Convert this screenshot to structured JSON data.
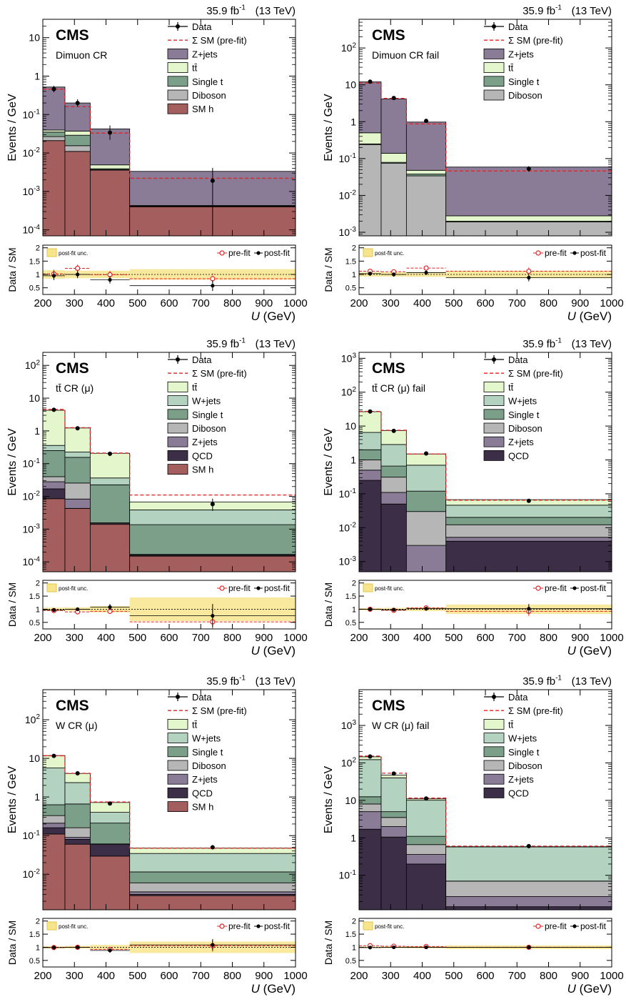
{
  "colors": {
    "zjets": "#8a7b96",
    "ttbar": "#e4f6cc",
    "singlet": "#7c9f89",
    "diboson": "#b6b6b6",
    "smh": "#a55e5e",
    "wjets": "#b3d3c0",
    "qcd": "#3d2e48",
    "data": "#000000",
    "prefit": "#e32121",
    "unc": "#f7e58e"
  },
  "chart_data": [
    {
      "type": "bar",
      "lumi": "35.9 fb",
      "lumi_sup": "-1",
      "energy": "(13 TeV)",
      "cms": "CMS",
      "region": "Dimuon CR",
      "ylabel": "Events / GeV",
      "xlabel": "U (GeV)",
      "ratio_ylabel": "Data / SM",
      "bin_edges": [
        200,
        270,
        350,
        475,
        1000
      ],
      "ylim": [
        7e-05,
        30
      ],
      "yticks": [
        {
          "v": 0.0001,
          "l": "10",
          "s": "-4"
        },
        {
          "v": 0.001,
          "l": "10",
          "s": "-3"
        },
        {
          "v": 0.01,
          "l": "10",
          "s": "-2"
        },
        {
          "v": 0.1,
          "l": "10",
          "s": "-1"
        },
        {
          "v": 1,
          "l": "1",
          "s": ""
        },
        {
          "v": 10,
          "l": "10",
          "s": ""
        }
      ],
      "xticks": [
        200,
        300,
        400,
        500,
        600,
        700,
        800,
        900,
        1000
      ],
      "stack": [
        {
          "name": "SM h",
          "color": "smh",
          "values": [
            0.021,
            0.011,
            0.0036,
            0.0004
          ]
        },
        {
          "name": "Diboson",
          "color": "diboson",
          "values": [
            0.0057,
            0.0045,
            0.0001,
            1e-05
          ]
        },
        {
          "name": "Single t",
          "color": "singlet",
          "values": [
            0.0083,
            0.0135,
            0.0002,
            1e-05
          ]
        },
        {
          "name": "tt̄",
          "color": "ttbar",
          "values": [
            0.0045,
            0.008,
            0.001,
            1e-05
          ]
        },
        {
          "name": "Z+jets",
          "color": "zjets",
          "values": [
            0.48,
            0.163,
            0.0375,
            0.0029
          ]
        }
      ],
      "legend": [
        "Data",
        "Σ SM (pre-fit)",
        "Z+jets",
        "tt̄",
        "Single t",
        "Diboson",
        "SM h"
      ],
      "prefit": [
        0.46,
        0.16,
        0.033,
        0.0022
      ],
      "data": [
        0.46,
        0.2,
        0.034,
        0.0019
      ],
      "data_err": [
        [
          0.38,
          0.56
        ],
        [
          0.16,
          0.25
        ],
        [
          0.022,
          0.052
        ],
        [
          3e-05,
          0.0041
        ]
      ],
      "ratio_ylim": [
        0.25,
        2.1
      ],
      "ratio_yticks": [
        "0.5",
        "1",
        "1.5",
        "2"
      ],
      "ratio_legend": [
        "post-fit unc.",
        "pre-fit",
        "post-fit"
      ],
      "ratio_unc": [
        0.16,
        0.14,
        0.14,
        0.2
      ],
      "ratio_prefit": [
        1.02,
        1.23,
        0.99,
        0.84
      ],
      "ratio_postfit": [
        0.95,
        1.0,
        0.8,
        0.58
      ]
    },
    {
      "type": "bar",
      "lumi": "35.9 fb",
      "lumi_sup": "-1",
      "energy": "(13 TeV)",
      "cms": "CMS",
      "region": "Dimuon CR fail",
      "ylabel": "Events / GeV",
      "xlabel": "U (GeV)",
      "ratio_ylabel": "Data / SM",
      "bin_edges": [
        200,
        270,
        350,
        475,
        1000
      ],
      "ylim": [
        0.0008,
        600
      ],
      "yticks": [
        {
          "v": 0.001,
          "l": "10",
          "s": "-3"
        },
        {
          "v": 0.01,
          "l": "10",
          "s": "-2"
        },
        {
          "v": 0.1,
          "l": "10",
          "s": "-1"
        },
        {
          "v": 1,
          "l": "1",
          "s": ""
        },
        {
          "v": 10,
          "l": "10",
          "s": ""
        },
        {
          "v": 100,
          "l": "10",
          "s": "2"
        }
      ],
      "xticks": [
        200,
        300,
        400,
        500,
        600,
        700,
        800,
        900,
        1000
      ],
      "stack": [
        {
          "name": "Diboson",
          "color": "diboson",
          "values": [
            0.24,
            0.075,
            0.034,
            0.0019
          ]
        },
        {
          "name": "Single t",
          "color": "singlet",
          "values": [
            0.01,
            0.004,
            0.004,
            0.0001
          ]
        },
        {
          "name": "tt̄",
          "color": "ttbar",
          "values": [
            0.25,
            0.06,
            0.01,
            0.0008
          ]
        },
        {
          "name": "Z+jets",
          "color": "zjets",
          "values": [
            11.5,
            4.0,
            0.93,
            0.056
          ]
        }
      ],
      "legend": [
        "Data",
        "Σ SM (pre-fit)",
        "Z+jets",
        "tt̄",
        "Single t",
        "Diboson"
      ],
      "prefit": [
        11.2,
        4.3,
        0.87,
        0.046
      ],
      "data": [
        12.2,
        4.4,
        1.05,
        0.053
      ],
      "data_err": [
        [
          11.3,
          13.1
        ],
        [
          4.0,
          4.8
        ],
        [
          0.93,
          1.18
        ],
        [
          0.044,
          0.062
        ]
      ],
      "ratio_ylim": [
        0.25,
        2.1
      ],
      "ratio_yticks": [
        "0.5",
        "1",
        "1.5",
        "2"
      ],
      "ratio_legend": [
        "post-fit unc.",
        "pre-fit",
        "post-fit"
      ],
      "ratio_unc": [
        0.08,
        0.08,
        0.09,
        0.14
      ],
      "ratio_prefit": [
        1.12,
        1.1,
        1.24,
        1.12
      ],
      "ratio_postfit": [
        1.03,
        1.0,
        1.07,
        0.88
      ]
    },
    {
      "type": "bar",
      "lumi": "35.9 fb",
      "lumi_sup": "-1",
      "energy": "(13 TeV)",
      "cms": "CMS",
      "region": "tt̄ CR (μ)",
      "ylabel": "Events / GeV",
      "xlabel": "U (GeV)",
      "ratio_ylabel": "Data / SM",
      "bin_edges": [
        200,
        270,
        350,
        475,
        1000
      ],
      "ylim": [
        5e-05,
        250
      ],
      "yticks": [
        {
          "v": 0.0001,
          "l": "10",
          "s": "-4"
        },
        {
          "v": 0.001,
          "l": "10",
          "s": "-3"
        },
        {
          "v": 0.01,
          "l": "10",
          "s": "-2"
        },
        {
          "v": 0.1,
          "l": "10",
          "s": "-1"
        },
        {
          "v": 1,
          "l": "1",
          "s": ""
        },
        {
          "v": 10,
          "l": "10",
          "s": ""
        },
        {
          "v": 100,
          "l": "10",
          "s": "2"
        }
      ],
      "xticks": [
        200,
        300,
        400,
        500,
        600,
        700,
        800,
        900,
        1000
      ],
      "stack": [
        {
          "name": "SM h",
          "color": "smh",
          "values": [
            0.0085,
            0.0043,
            0.0014,
            0.00015
          ]
        },
        {
          "name": "QCD",
          "color": "qcd",
          "values": [
            0.0085,
            1e-05,
            1e-05,
            5e-06
          ]
        },
        {
          "name": "Z+jets",
          "color": "zjets",
          "values": [
            0.011,
            0.004,
            0.0001,
            1e-05
          ]
        },
        {
          "name": "Diboson",
          "color": "diboson",
          "values": [
            0.012,
            0.0173,
            5e-05,
            5e-06
          ]
        },
        {
          "name": "Single t",
          "color": "singlet",
          "values": [
            0.21,
            0.13,
            0.021,
            0.0012
          ]
        },
        {
          "name": "W+jets",
          "color": "wjets",
          "values": [
            0.11,
            0.07,
            0.014,
            0.0025
          ]
        },
        {
          "name": "tt̄",
          "color": "ttbar",
          "values": [
            3.9,
            1.0,
            0.17,
            0.0029
          ]
        }
      ],
      "legend": [
        "Data",
        "Σ SM (pre-fit)",
        "tt̄",
        "W+jets",
        "Single t",
        "Diboson",
        "Z+jets",
        "QCD",
        "SM h"
      ],
      "prefit": [
        4.5,
        1.25,
        0.21,
        0.011
      ],
      "data": [
        4.4,
        1.2,
        0.2,
        0.0058
      ],
      "data_err": [
        [
          4.1,
          4.7
        ],
        [
          1.1,
          1.3
        ],
        [
          0.17,
          0.23
        ],
        [
          0.0036,
          0.0085
        ]
      ],
      "ratio_ylim": [
        0.25,
        2.1
      ],
      "ratio_yticks": [
        "0.5",
        "1",
        "1.5",
        "2"
      ],
      "ratio_legend": [
        "post-fit unc.",
        "pre-fit",
        "post-fit"
      ],
      "ratio_unc": [
        0.06,
        0.07,
        0.12,
        0.45
      ],
      "ratio_prefit": [
        0.95,
        0.9,
        0.92,
        0.52
      ],
      "ratio_postfit": [
        0.97,
        1.0,
        1.08,
        0.75
      ]
    },
    {
      "type": "bar",
      "lumi": "35.9 fb",
      "lumi_sup": "-1",
      "energy": "(13 TeV)",
      "cms": "CMS",
      "region": "tt̄ CR (μ) fail",
      "ylabel": "Events / GeV",
      "xlabel": "U (GeV)",
      "ratio_ylabel": "Data / SM",
      "bin_edges": [
        200,
        270,
        350,
        475,
        1000
      ],
      "ylim": [
        0.0005,
        1500
      ],
      "yticks": [
        {
          "v": 0.001,
          "l": "10",
          "s": "-3"
        },
        {
          "v": 0.01,
          "l": "10",
          "s": "-2"
        },
        {
          "v": 0.1,
          "l": "10",
          "s": "-1"
        },
        {
          "v": 1,
          "l": "1",
          "s": ""
        },
        {
          "v": 10,
          "l": "10",
          "s": ""
        },
        {
          "v": 100,
          "l": "10",
          "s": "2"
        },
        {
          "v": 1000,
          "l": "10",
          "s": "3"
        }
      ],
      "xticks": [
        200,
        300,
        400,
        500,
        600,
        700,
        800,
        900,
        1000
      ],
      "stack": [
        {
          "name": "QCD",
          "color": "qcd",
          "values": [
            0.25,
            0.05,
            0.0001,
            0.004
          ]
        },
        {
          "name": "Z+jets",
          "color": "zjets",
          "values": [
            0.25,
            0.06,
            0.0029,
            0.0012
          ]
        },
        {
          "name": "Diboson",
          "color": "diboson",
          "values": [
            0.5,
            0.2,
            0.027,
            0.007
          ]
        },
        {
          "name": "Single t",
          "color": "singlet",
          "values": [
            1.0,
            0.35,
            0.09,
            0.008
          ]
        },
        {
          "name": "W+jets",
          "color": "wjets",
          "values": [
            4.5,
            2.2,
            0.58,
            0.026
          ]
        },
        {
          "name": "tt̄",
          "color": "ttbar",
          "values": [
            20.0,
            4.5,
            0.8,
            0.021
          ]
        }
      ],
      "legend": [
        "Data",
        "Σ SM (pre-fit)",
        "tt̄",
        "W+jets",
        "Single t",
        "Diboson",
        "Z+jets",
        "QCD"
      ],
      "prefit": [
        27,
        7.5,
        1.5,
        0.065
      ],
      "data": [
        27,
        7.2,
        1.55,
        0.062
      ],
      "data_err": [
        [
          26,
          28
        ],
        [
          6.9,
          7.5
        ],
        [
          1.45,
          1.65
        ],
        [
          0.055,
          0.069
        ]
      ],
      "ratio_ylim": [
        0.25,
        2.1
      ],
      "ratio_yticks": [
        "0.5",
        "1",
        "1.5",
        "2"
      ],
      "ratio_legend": [
        "post-fit unc.",
        "pre-fit",
        "post-fit"
      ],
      "ratio_unc": [
        0.04,
        0.05,
        0.07,
        0.18
      ],
      "ratio_prefit": [
        1.0,
        0.96,
        1.05,
        0.92
      ],
      "ratio_postfit": [
        1.0,
        0.98,
        1.02,
        1.02
      ]
    },
    {
      "type": "bar",
      "lumi": "35.9 fb",
      "lumi_sup": "-1",
      "energy": "(13 TeV)",
      "cms": "CMS",
      "region": "W CR (μ)",
      "ylabel": "Events / GeV",
      "xlabel": "U (GeV)",
      "ratio_ylabel": "Data / SM",
      "bin_edges": [
        200,
        270,
        350,
        475,
        1000
      ],
      "ylim": [
        0.0012,
        600
      ],
      "yticks": [
        {
          "v": 0.01,
          "l": "10",
          "s": "-2"
        },
        {
          "v": 0.1,
          "l": "10",
          "s": "-1"
        },
        {
          "v": 1,
          "l": "1",
          "s": ""
        },
        {
          "v": 10,
          "l": "10",
          "s": ""
        },
        {
          "v": 100,
          "l": "10",
          "s": "2"
        }
      ],
      "xticks": [
        200,
        300,
        400,
        500,
        600,
        700,
        800,
        900,
        1000
      ],
      "stack": [
        {
          "name": "SM h",
          "color": "smh",
          "values": [
            0.11,
            0.06,
            0.0295,
            0.0028
          ]
        },
        {
          "name": "QCD",
          "color": "qcd",
          "values": [
            0.05,
            0.02,
            0.0305,
            0.0002
          ]
        },
        {
          "name": "Z+jets",
          "color": "zjets",
          "values": [
            0.05,
            0.01,
            0.0005,
            0.0005
          ]
        },
        {
          "name": "Diboson",
          "color": "diboson",
          "values": [
            0.12,
            0.07,
            0.0005,
            0.0025
          ]
        },
        {
          "name": "Single t",
          "color": "singlet",
          "values": [
            0.3,
            0.5,
            0.15,
            0.0055
          ]
        },
        {
          "name": "W+jets",
          "color": "wjets",
          "values": [
            5.0,
            1.7,
            0.19,
            0.023
          ]
        },
        {
          "name": "tt̄",
          "color": "ttbar",
          "values": [
            6.2,
            1.7,
            0.32,
            0.013
          ]
        }
      ],
      "legend": [
        "Data",
        "Σ SM (pre-fit)",
        "tt̄",
        "W+jets",
        "Single t",
        "Diboson",
        "Z+jets",
        "QCD",
        "SM h"
      ],
      "prefit": [
        11.7,
        4.1,
        0.74,
        0.047
      ],
      "data": [
        11.6,
        4.1,
        0.68,
        0.05
      ],
      "data_err": [
        [
          11.2,
          12.0
        ],
        [
          3.9,
          4.3
        ],
        [
          0.62,
          0.74
        ],
        [
          0.044,
          0.056
        ]
      ],
      "ratio_ylim": [
        0.25,
        2.1
      ],
      "ratio_yticks": [
        "0.5",
        "1",
        "1.5",
        "2"
      ],
      "ratio_legend": [
        "post-fit unc.",
        "pre-fit",
        "post-fit"
      ],
      "ratio_unc": [
        0.04,
        0.05,
        0.09,
        0.22
      ],
      "ratio_prefit": [
        0.99,
        1.0,
        0.92,
        1.06
      ],
      "ratio_postfit": [
        0.99,
        1.0,
        0.88,
        1.09
      ]
    },
    {
      "type": "bar",
      "lumi": "35.9 fb",
      "lumi_sup": "-1",
      "energy": "(13 TeV)",
      "cms": "CMS",
      "region": "W CR (μ) fail",
      "ylabel": "Events / GeV",
      "xlabel": "U (GeV)",
      "ratio_ylabel": "Data / SM",
      "bin_edges": [
        200,
        270,
        350,
        475,
        1000
      ],
      "ylim": [
        0.012,
        9000
      ],
      "yticks": [
        {
          "v": 0.1,
          "l": "10",
          "s": "-1"
        },
        {
          "v": 1,
          "l": "1",
          "s": ""
        },
        {
          "v": 10,
          "l": "10",
          "s": ""
        },
        {
          "v": 100,
          "l": "10",
          "s": "2"
        },
        {
          "v": 1000,
          "l": "10",
          "s": "3"
        }
      ],
      "xticks": [
        200,
        300,
        400,
        500,
        600,
        700,
        800,
        900,
        1000
      ],
      "stack": [
        {
          "name": "QCD",
          "color": "qcd",
          "values": [
            1.7,
            1.05,
            0.2,
            0.0145
          ]
        },
        {
          "name": "Z+jets",
          "color": "zjets",
          "values": [
            3.3,
            0.95,
            0.16,
            0.0125
          ]
        },
        {
          "name": "Diboson",
          "color": "diboson",
          "values": [
            3.0,
            1.5,
            0.3,
            0.043
          ]
        },
        {
          "name": "Single t",
          "color": "singlet",
          "values": [
            4.5,
            1.5,
            0.44,
            0.0003
          ]
        },
        {
          "name": "W+jets",
          "color": "wjets",
          "values": [
            110,
            35,
            9.0,
            0.5
          ]
        },
        {
          "name": "tt̄",
          "color": "ttbar",
          "values": [
            23,
            7,
            0.9,
            0.01
          ]
        }
      ],
      "legend": [
        "Data",
        "Σ SM (pre-fit)",
        "tt̄",
        "W+jets",
        "Single t",
        "Diboson",
        "Z+jets",
        "QCD"
      ],
      "prefit": [
        152,
        53,
        11.5,
        0.6
      ],
      "data": [
        148,
        52,
        11.2,
        0.6
      ],
      "data_err": [
        [
          144,
          152
        ],
        [
          50,
          54
        ],
        [
          10.7,
          11.7
        ],
        [
          0.56,
          0.64
        ]
      ],
      "ratio_ylim": [
        0.25,
        2.1
      ],
      "ratio_yticks": [
        "0.5",
        "1",
        "1.5",
        "2"
      ],
      "ratio_legend": [
        "post-fit unc.",
        "pre-fit",
        "post-fit"
      ],
      "ratio_unc": [
        0.03,
        0.03,
        0.04,
        0.07
      ],
      "ratio_prefit": [
        1.06,
        1.04,
        1.03,
        1.0
      ],
      "ratio_postfit": [
        0.99,
        1.0,
        1.0,
        1.0
      ]
    }
  ]
}
